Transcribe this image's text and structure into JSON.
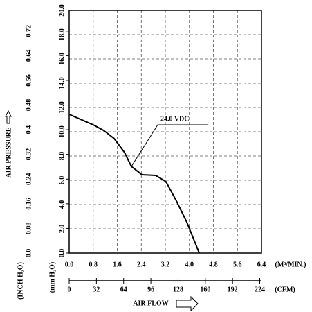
{
  "chart_data": {
    "type": "line",
    "x": [
      0.0,
      0.8,
      1.15,
      1.5,
      1.84,
      2.07,
      2.42,
      2.88,
      3.22,
      3.57,
      3.91,
      4.33
    ],
    "series": [
      {
        "name": "24.0 VDC",
        "color": "#000000",
        "values": [
          11.43,
          10.57,
          10.1,
          9.43,
          8.3,
          7.14,
          6.46,
          6.4,
          5.89,
          4.29,
          2.57,
          0.0
        ]
      }
    ],
    "xlim": [
      0,
      6.4
    ],
    "xticks": [
      {
        "value": 0,
        "label": "0.0"
      },
      0.8,
      1.6,
      2.4,
      3.2,
      {
        "value": 4,
        "label": "4.0"
      },
      4.8,
      5.6,
      6.4
    ],
    "xlabel": "(M³/MIN.)",
    "x2lim": [
      0,
      226
    ],
    "x2ticks": [
      0,
      32,
      64,
      96,
      128,
      160,
      192,
      224
    ],
    "x2label": "(CFM)",
    "flow_title": "AIR FLOW",
    "ylim": [
      0,
      20
    ],
    "yticks": [
      {
        "value": 0,
        "label": "0.0"
      },
      {
        "value": 2,
        "label": "2.0"
      },
      {
        "value": 4,
        "label": "4.0"
      },
      {
        "value": 6,
        "label": "6.0"
      },
      {
        "value": 8,
        "label": "8.0"
      },
      {
        "value": 10,
        "label": "10.0"
      },
      {
        "value": 12,
        "label": "12.0"
      },
      {
        "value": 14,
        "label": "14.0"
      },
      {
        "value": 16,
        "label": "16.0"
      },
      {
        "value": 18,
        "label": "18.0"
      },
      {
        "value": 20,
        "label": "20.0"
      }
    ],
    "ylabel": "(mm H₂O)",
    "y2lim": [
      0,
      0.787
    ],
    "y2ticks": [
      {
        "value": 0,
        "label": "0.0"
      },
      0.08,
      0.16,
      0.24,
      0.32,
      0.4,
      0.48,
      0.56,
      0.64,
      0.72
    ],
    "y2label": "(INCH H₂O)",
    "pressure_title": "AIR PRESSURE",
    "grid": true
  }
}
